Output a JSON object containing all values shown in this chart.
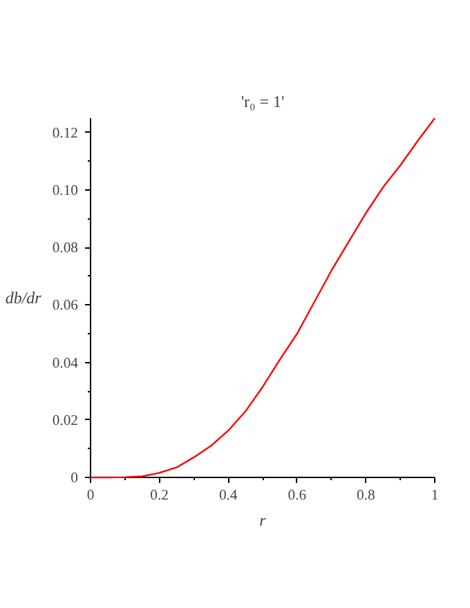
{
  "chart_data": {
    "type": "line",
    "title": "'r₀ = 1'",
    "xlabel": "r",
    "ylabel": "db/dr",
    "x": [
      0,
      0.05,
      0.1,
      0.15,
      0.2,
      0.25,
      0.3,
      0.35,
      0.4,
      0.45,
      0.5,
      0.55,
      0.6,
      0.65,
      0.7,
      0.75,
      0.8,
      0.85,
      0.9,
      0.95,
      1.0
    ],
    "series": [
      {
        "color": "#ff0000",
        "values": [
          0,
          0,
          0.0001,
          0.0004,
          0.0016,
          0.0035,
          0.007,
          0.011,
          0.0163,
          0.023,
          0.0315,
          0.041,
          0.05,
          0.061,
          0.072,
          0.082,
          0.092,
          0.101,
          0.1086,
          0.117,
          0.125
        ]
      }
    ],
    "xlim": [
      0,
      1
    ],
    "ylim": [
      0,
      0.125
    ],
    "xticks": [
      0,
      0.2,
      0.4,
      0.6,
      0.8,
      {
        "value": 1,
        "label": "1"
      }
    ],
    "yticks": [
      0,
      0.02,
      0.04,
      0.06,
      0.08,
      {
        "value": 0.1,
        "label": "0.10"
      },
      0.12
    ],
    "grid": false,
    "marker": "none",
    "line_style": "solid"
  }
}
